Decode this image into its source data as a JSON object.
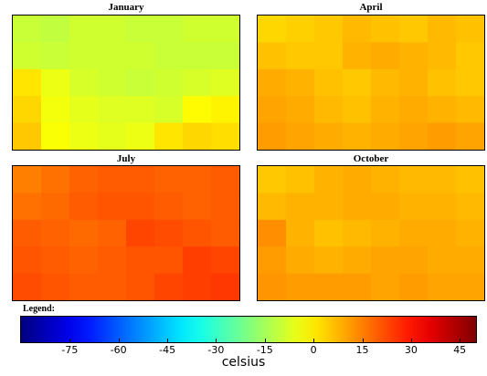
{
  "chart_data": {
    "type": "heatmap",
    "grid": false,
    "colorbar": {
      "label": "Legend:",
      "unit": "celsius",
      "range": [
        -90,
        50
      ],
      "ticks": [
        -75,
        -60,
        -45,
        -30,
        -15,
        0,
        15,
        30,
        45
      ],
      "colormap": "jet"
    },
    "panels": [
      {
        "title": "January",
        "values": [
          [
            -10,
            -11,
            -9,
            -9,
            -10,
            -10,
            -9,
            -9
          ],
          [
            -9,
            -10,
            -9,
            -9,
            -9,
            -10,
            -10,
            -10
          ],
          [
            1,
            -5,
            -8,
            -9,
            -10,
            -9,
            -8,
            -7
          ],
          [
            3,
            -4,
            -6,
            -7,
            -7,
            -8,
            -2,
            -1
          ],
          [
            5,
            -3,
            -5,
            -6,
            -5,
            1,
            3,
            2
          ]
        ]
      },
      {
        "title": "April",
        "values": [
          [
            3,
            4,
            5,
            7,
            6,
            5,
            7,
            6
          ],
          [
            6,
            5,
            5,
            8,
            9,
            8,
            7,
            5
          ],
          [
            9,
            8,
            6,
            5,
            7,
            8,
            6,
            5
          ],
          [
            10,
            9,
            7,
            6,
            8,
            9,
            8,
            7
          ],
          [
            11,
            10,
            9,
            8,
            9,
            10,
            11,
            10
          ]
        ]
      },
      {
        "title": "July",
        "values": [
          [
            15,
            17,
            19,
            20,
            20,
            19,
            19,
            20
          ],
          [
            17,
            18,
            20,
            21,
            21,
            20,
            19,
            20
          ],
          [
            20,
            19,
            18,
            19,
            23,
            22,
            21,
            20
          ],
          [
            21,
            20,
            19,
            20,
            21,
            21,
            24,
            23
          ],
          [
            22,
            21,
            20,
            20,
            21,
            23,
            24,
            25
          ]
        ]
      },
      {
        "title": "October",
        "values": [
          [
            5,
            6,
            8,
            9,
            8,
            7,
            7,
            6
          ],
          [
            7,
            8,
            8,
            9,
            9,
            8,
            8,
            7
          ],
          [
            13,
            8,
            6,
            7,
            8,
            9,
            9,
            8
          ],
          [
            11,
            9,
            8,
            9,
            10,
            10,
            9,
            9
          ],
          [
            12,
            11,
            11,
            11,
            10,
            11,
            10,
            10
          ]
        ]
      }
    ]
  }
}
